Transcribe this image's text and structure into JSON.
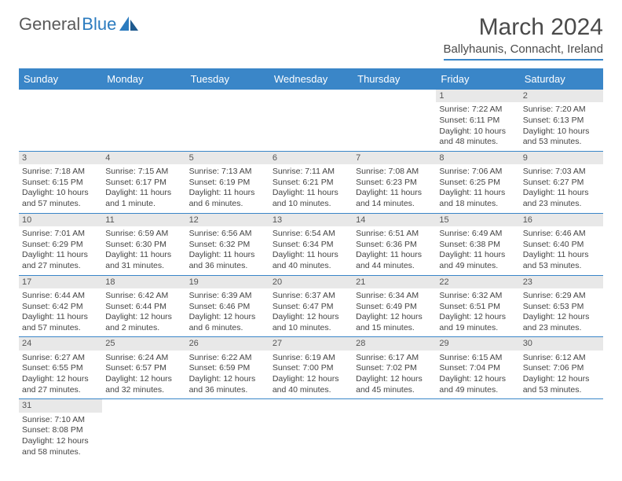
{
  "logo": {
    "textGray": "General",
    "textBlue": "Blue"
  },
  "title": "March 2024",
  "location": "Ballyhaunis, Connacht, Ireland",
  "headerColor": "#3a86c8",
  "dayNames": [
    "Sunday",
    "Monday",
    "Tuesday",
    "Wednesday",
    "Thursday",
    "Friday",
    "Saturday"
  ],
  "weeks": [
    [
      null,
      null,
      null,
      null,
      null,
      {
        "n": "1",
        "sunrise": "7:22 AM",
        "sunset": "6:11 PM",
        "daylight": "10 hours and 48 minutes."
      },
      {
        "n": "2",
        "sunrise": "7:20 AM",
        "sunset": "6:13 PM",
        "daylight": "10 hours and 53 minutes."
      }
    ],
    [
      {
        "n": "3",
        "sunrise": "7:18 AM",
        "sunset": "6:15 PM",
        "daylight": "10 hours and 57 minutes."
      },
      {
        "n": "4",
        "sunrise": "7:15 AM",
        "sunset": "6:17 PM",
        "daylight": "11 hours and 1 minute."
      },
      {
        "n": "5",
        "sunrise": "7:13 AM",
        "sunset": "6:19 PM",
        "daylight": "11 hours and 6 minutes."
      },
      {
        "n": "6",
        "sunrise": "7:11 AM",
        "sunset": "6:21 PM",
        "daylight": "11 hours and 10 minutes."
      },
      {
        "n": "7",
        "sunrise": "7:08 AM",
        "sunset": "6:23 PM",
        "daylight": "11 hours and 14 minutes."
      },
      {
        "n": "8",
        "sunrise": "7:06 AM",
        "sunset": "6:25 PM",
        "daylight": "11 hours and 18 minutes."
      },
      {
        "n": "9",
        "sunrise": "7:03 AM",
        "sunset": "6:27 PM",
        "daylight": "11 hours and 23 minutes."
      }
    ],
    [
      {
        "n": "10",
        "sunrise": "7:01 AM",
        "sunset": "6:29 PM",
        "daylight": "11 hours and 27 minutes."
      },
      {
        "n": "11",
        "sunrise": "6:59 AM",
        "sunset": "6:30 PM",
        "daylight": "11 hours and 31 minutes."
      },
      {
        "n": "12",
        "sunrise": "6:56 AM",
        "sunset": "6:32 PM",
        "daylight": "11 hours and 36 minutes."
      },
      {
        "n": "13",
        "sunrise": "6:54 AM",
        "sunset": "6:34 PM",
        "daylight": "11 hours and 40 minutes."
      },
      {
        "n": "14",
        "sunrise": "6:51 AM",
        "sunset": "6:36 PM",
        "daylight": "11 hours and 44 minutes."
      },
      {
        "n": "15",
        "sunrise": "6:49 AM",
        "sunset": "6:38 PM",
        "daylight": "11 hours and 49 minutes."
      },
      {
        "n": "16",
        "sunrise": "6:46 AM",
        "sunset": "6:40 PM",
        "daylight": "11 hours and 53 minutes."
      }
    ],
    [
      {
        "n": "17",
        "sunrise": "6:44 AM",
        "sunset": "6:42 PM",
        "daylight": "11 hours and 57 minutes."
      },
      {
        "n": "18",
        "sunrise": "6:42 AM",
        "sunset": "6:44 PM",
        "daylight": "12 hours and 2 minutes."
      },
      {
        "n": "19",
        "sunrise": "6:39 AM",
        "sunset": "6:46 PM",
        "daylight": "12 hours and 6 minutes."
      },
      {
        "n": "20",
        "sunrise": "6:37 AM",
        "sunset": "6:47 PM",
        "daylight": "12 hours and 10 minutes."
      },
      {
        "n": "21",
        "sunrise": "6:34 AM",
        "sunset": "6:49 PM",
        "daylight": "12 hours and 15 minutes."
      },
      {
        "n": "22",
        "sunrise": "6:32 AM",
        "sunset": "6:51 PM",
        "daylight": "12 hours and 19 minutes."
      },
      {
        "n": "23",
        "sunrise": "6:29 AM",
        "sunset": "6:53 PM",
        "daylight": "12 hours and 23 minutes."
      }
    ],
    [
      {
        "n": "24",
        "sunrise": "6:27 AM",
        "sunset": "6:55 PM",
        "daylight": "12 hours and 27 minutes."
      },
      {
        "n": "25",
        "sunrise": "6:24 AM",
        "sunset": "6:57 PM",
        "daylight": "12 hours and 32 minutes."
      },
      {
        "n": "26",
        "sunrise": "6:22 AM",
        "sunset": "6:59 PM",
        "daylight": "12 hours and 36 minutes."
      },
      {
        "n": "27",
        "sunrise": "6:19 AM",
        "sunset": "7:00 PM",
        "daylight": "12 hours and 40 minutes."
      },
      {
        "n": "28",
        "sunrise": "6:17 AM",
        "sunset": "7:02 PM",
        "daylight": "12 hours and 45 minutes."
      },
      {
        "n": "29",
        "sunrise": "6:15 AM",
        "sunset": "7:04 PM",
        "daylight": "12 hours and 49 minutes."
      },
      {
        "n": "30",
        "sunrise": "6:12 AM",
        "sunset": "7:06 PM",
        "daylight": "12 hours and 53 minutes."
      }
    ],
    [
      {
        "n": "31",
        "sunrise": "7:10 AM",
        "sunset": "8:08 PM",
        "daylight": "12 hours and 58 minutes."
      },
      null,
      null,
      null,
      null,
      null,
      null
    ]
  ],
  "labels": {
    "sunrise": "Sunrise: ",
    "sunset": "Sunset: ",
    "daylight": "Daylight: "
  }
}
